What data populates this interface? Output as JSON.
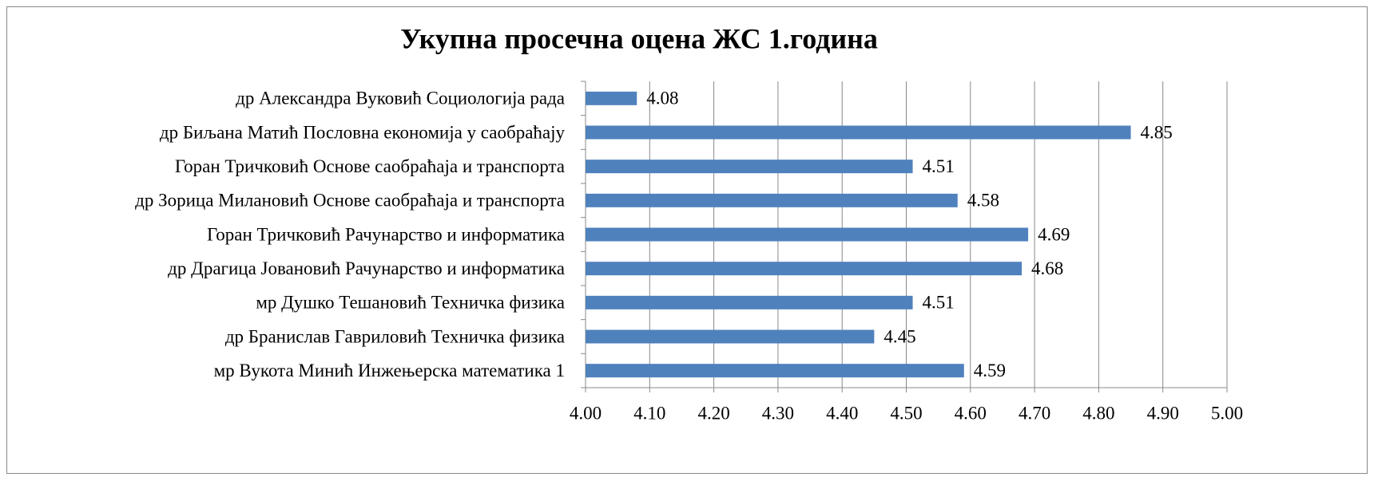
{
  "chart_data": {
    "type": "barh",
    "title": "Укупна просечна оцена ЖС 1.година",
    "categories": [
      "др Александра Вуковић Социологија рада",
      "др Биљана Матић Пословна економија у саобраћају",
      "Горан Тричковић Основе саобраћаја и транспорта",
      "др Зорица Милановић Основе саобраћаја и транспорта",
      "Горан Тричковић Рачунарство и информатика",
      "др Драгица Јовановић Рачунарство и информатика",
      "мр Душко Тешановић Техничка физика",
      "др Бранислав Гавриловић Техничка физика",
      "мр Вукота Минић Инжењерска математика 1"
    ],
    "values": [
      4.08,
      4.85,
      4.51,
      4.58,
      4.69,
      4.68,
      4.51,
      4.45,
      4.59
    ],
    "color": "#4f81bd",
    "xlim": [
      4,
      5
    ],
    "xticks": [
      {
        "value": 4,
        "label": "4.00"
      },
      {
        "value": 4.1,
        "label": "4.10"
      },
      {
        "value": 4.2,
        "label": "4.20"
      },
      {
        "value": 4.3,
        "label": "4.30"
      },
      {
        "value": 4.4,
        "label": "4.40"
      },
      {
        "value": 4.5,
        "label": "4.50"
      },
      {
        "value": 4.6,
        "label": "4.60"
      },
      {
        "value": 4.7,
        "label": "4.70"
      },
      {
        "value": 4.8,
        "label": "4.80"
      },
      {
        "value": 4.9,
        "label": "4.90"
      },
      {
        "value": 5,
        "label": "5.00"
      }
    ],
    "grid": true
  }
}
